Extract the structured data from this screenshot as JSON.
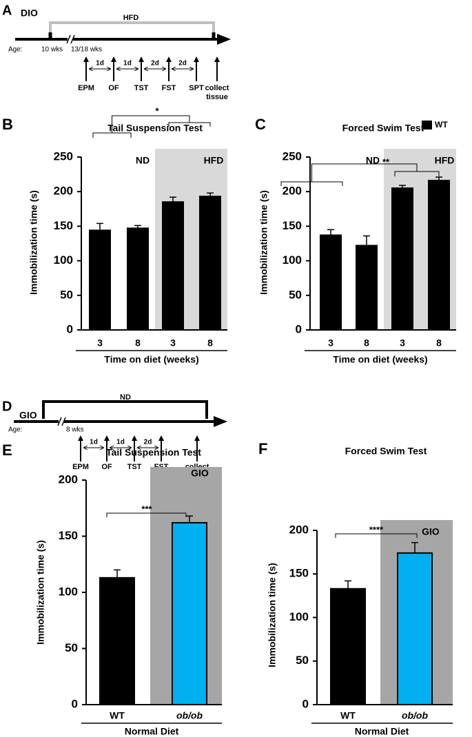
{
  "panel_a": {
    "letter": "A",
    "title": "DIO",
    "bracket_label": "HFD",
    "age_label": "Age:",
    "ages": [
      "10 wks",
      "13/18 wks"
    ],
    "events": [
      "EPM",
      "OF",
      "TST",
      "FST",
      "SPT",
      "collect tissue"
    ],
    "intervals": [
      "1d",
      "1d",
      "2d",
      "2d"
    ]
  },
  "panel_d": {
    "letter": "D",
    "title": "GIO",
    "bracket_label": "ND",
    "age_label": "Age:",
    "ages": [
      "8 wks"
    ],
    "events": [
      "EPM",
      "OF",
      "TST",
      "FST",
      "collect tissue"
    ],
    "intervals": [
      "1d",
      "1d",
      "2d"
    ]
  },
  "chart_data": [
    {
      "type": "bar",
      "panel": "B",
      "title": "Tail Suspension Test",
      "y_label": "Immobilization time (s)",
      "x_label": "Time on diet (weeks)",
      "categories": [
        "3",
        "8",
        "3",
        "8"
      ],
      "values": [
        144,
        147,
        185,
        193
      ],
      "errors": [
        10,
        4,
        7,
        5
      ],
      "colors": [
        "#000000",
        "#000000",
        "#000000",
        "#000000"
      ],
      "ylim": [
        0,
        250
      ],
      "yticks": [
        0,
        50,
        100,
        150,
        200,
        250
      ],
      "regions": [
        "ND",
        "HFD"
      ],
      "shade_color": "#d9d9d9",
      "significance": "*"
    },
    {
      "type": "bar",
      "panel": "C",
      "title": "Forced Swim Test",
      "y_label": "Immobilization time (s)",
      "x_label": "Time on diet (weeks)",
      "categories": [
        "3",
        "8",
        "3",
        "8"
      ],
      "values": [
        137,
        122,
        205,
        216
      ],
      "errors": [
        8,
        14,
        4,
        5
      ],
      "colors": [
        "#000000",
        "#000000",
        "#000000",
        "#000000"
      ],
      "ylim": [
        0,
        250
      ],
      "yticks": [
        0,
        50,
        100,
        150,
        200,
        250
      ],
      "regions": [
        "ND",
        "HFD"
      ],
      "shade_color": "#d9d9d9",
      "significance": "**",
      "legend": {
        "name": "WT",
        "color": "#000000"
      }
    },
    {
      "type": "bar",
      "panel": "E",
      "title": "Tail Suspension Test",
      "y_label": "Immobilization time (s)",
      "x_label": "Normal Diet",
      "categories": [
        "WT",
        "ob/ob"
      ],
      "values": [
        113,
        162
      ],
      "errors": [
        7,
        6
      ],
      "colors": [
        "#000000",
        "#00b0f0"
      ],
      "ylim": [
        0,
        200
      ],
      "yticks": [
        0,
        50,
        100,
        150,
        200
      ],
      "regions": [
        "GIO"
      ],
      "shade_color": "#a6a6a6",
      "significance": "***"
    },
    {
      "type": "bar",
      "panel": "F",
      "title": "Forced Swim Test",
      "y_label": "Immobilization time (s)",
      "x_label": "Normal Diet",
      "categories": [
        "WT",
        "ob/ob"
      ],
      "values": [
        133,
        174
      ],
      "errors": [
        9,
        12
      ],
      "colors": [
        "#000000",
        "#00b0f0"
      ],
      "ylim": [
        0,
        200
      ],
      "yticks": [
        0,
        50,
        100,
        150,
        200
      ],
      "regions": [
        "GIO"
      ],
      "shade_color": "#a6a6a6",
      "significance": "****"
    }
  ]
}
